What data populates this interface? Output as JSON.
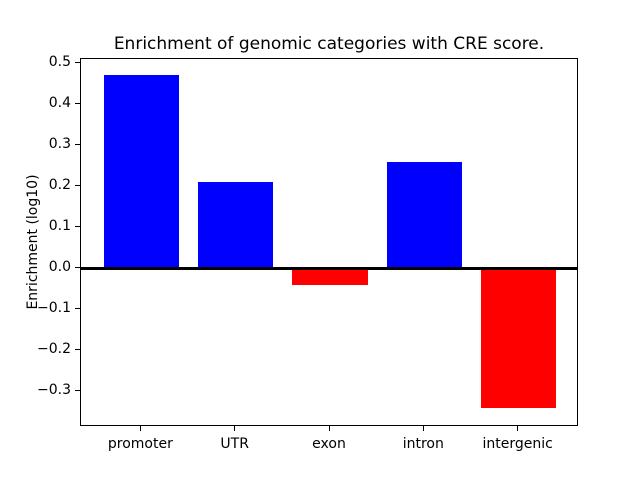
{
  "chart_data": {
    "type": "bar",
    "title": "Enrichment of genomic categories with CRE score.",
    "ylabel": "Enrichment (log10)",
    "xlabel": "",
    "categories": [
      "promoter",
      "UTR",
      "exon",
      "intron",
      "intergenic"
    ],
    "values": [
      0.47,
      0.21,
      -0.04,
      0.26,
      -0.34
    ],
    "bar_colors": [
      "#0000ff",
      "#0000ff",
      "#ff0000",
      "#0000ff",
      "#ff0000"
    ],
    "positive_color": "#0000ff",
    "negative_color": "#ff0000",
    "bar_width_fraction": 0.8,
    "ylim": [
      -0.387,
      0.51
    ],
    "ytick_values": [
      0.5,
      0.4,
      0.3,
      0.2,
      0.1,
      0.0,
      -0.1,
      -0.2,
      -0.3
    ],
    "ytick_labels": [
      "0.5",
      "0.4",
      "0.3",
      "0.2",
      "0.1",
      "0.0",
      "−0.1",
      "−0.2",
      "−0.3"
    ],
    "grid": false,
    "legend": "none",
    "zero_line": true,
    "frame_color": "#000000",
    "background_color": "#ffffff"
  }
}
